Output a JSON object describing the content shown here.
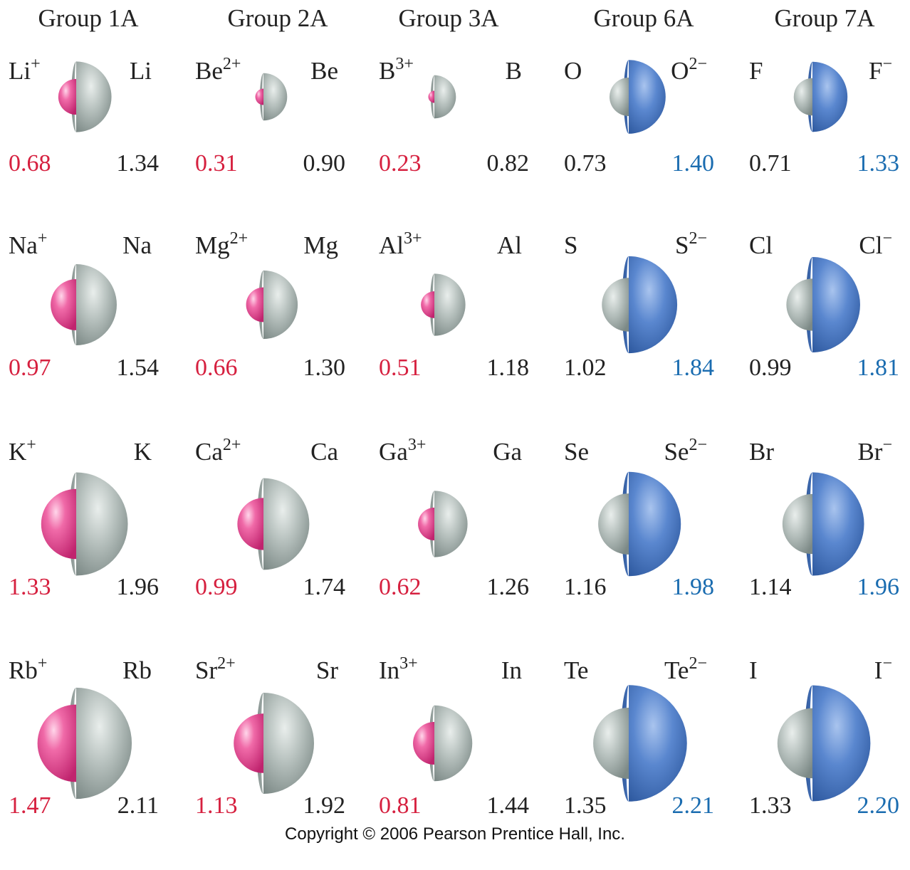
{
  "colors": {
    "cation": "#e8559a",
    "gray": "#aab5b2",
    "anion": "#4e7fc9",
    "red_text": "#d6203f",
    "blue_text": "#1a6cb0",
    "black_text": "#222222"
  },
  "groups": [
    {
      "name": "Group 1A",
      "type": "cation",
      "rows": [
        {
          "left_symbol": "Li",
          "left_charge": "+",
          "right_symbol": "Li",
          "right_charge": "",
          "left_value": "0.68",
          "right_value": "1.34"
        },
        {
          "left_symbol": "Na",
          "left_charge": "+",
          "right_symbol": "Na",
          "right_charge": "",
          "left_value": "0.97",
          "right_value": "1.54"
        },
        {
          "left_symbol": "K",
          "left_charge": "+",
          "right_symbol": "K",
          "right_charge": "",
          "left_value": "1.33",
          "right_value": "1.96"
        },
        {
          "left_symbol": "Rb",
          "left_charge": "+",
          "right_symbol": "Rb",
          "right_charge": "",
          "left_value": "1.47",
          "right_value": "2.11"
        }
      ]
    },
    {
      "name": "Group 2A",
      "type": "cation",
      "rows": [
        {
          "left_symbol": "Be",
          "left_charge": "2+",
          "right_symbol": "Be",
          "right_charge": "",
          "left_value": "0.31",
          "right_value": "0.90"
        },
        {
          "left_symbol": "Mg",
          "left_charge": "2+",
          "right_symbol": "Mg",
          "right_charge": "",
          "left_value": "0.66",
          "right_value": "1.30"
        },
        {
          "left_symbol": "Ca",
          "left_charge": "2+",
          "right_symbol": "Ca",
          "right_charge": "",
          "left_value": "0.99",
          "right_value": "1.74"
        },
        {
          "left_symbol": "Sr",
          "left_charge": "2+",
          "right_symbol": "Sr",
          "right_charge": "",
          "left_value": "1.13",
          "right_value": "1.92"
        }
      ]
    },
    {
      "name": "Group 3A",
      "type": "cation",
      "rows": [
        {
          "left_symbol": "B",
          "left_charge": "3+",
          "right_symbol": "B",
          "right_charge": "",
          "left_value": "0.23",
          "right_value": "0.82"
        },
        {
          "left_symbol": "Al",
          "left_charge": "3+",
          "right_symbol": "Al",
          "right_charge": "",
          "left_value": "0.51",
          "right_value": "1.18"
        },
        {
          "left_symbol": "Ga",
          "left_charge": "3+",
          "right_symbol": "Ga",
          "right_charge": "",
          "left_value": "0.62",
          "right_value": "1.26"
        },
        {
          "left_symbol": "In",
          "left_charge": "3+",
          "right_symbol": "In",
          "right_charge": "",
          "left_value": "0.81",
          "right_value": "1.44"
        }
      ]
    },
    {
      "name": "Group 6A",
      "type": "anion",
      "rows": [
        {
          "left_symbol": "O",
          "left_charge": "",
          "right_symbol": "O",
          "right_charge": "2−",
          "left_value": "0.73",
          "right_value": "1.40"
        },
        {
          "left_symbol": "S",
          "left_charge": "",
          "right_symbol": "S",
          "right_charge": "2−",
          "left_value": "1.02",
          "right_value": "1.84"
        },
        {
          "left_symbol": "Se",
          "left_charge": "",
          "right_symbol": "Se",
          "right_charge": "2−",
          "left_value": "1.16",
          "right_value": "1.98"
        },
        {
          "left_symbol": "Te",
          "left_charge": "",
          "right_symbol": "Te",
          "right_charge": "2−",
          "left_value": "1.35",
          "right_value": "2.21"
        }
      ]
    },
    {
      "name": "Group 7A",
      "type": "anion",
      "rows": [
        {
          "left_symbol": "F",
          "left_charge": "",
          "right_symbol": "F",
          "right_charge": "−",
          "left_value": "0.71",
          "right_value": "1.33"
        },
        {
          "left_symbol": "Cl",
          "left_charge": "",
          "right_symbol": "Cl",
          "right_charge": "−",
          "left_value": "0.99",
          "right_value": "1.81"
        },
        {
          "left_symbol": "Br",
          "left_charge": "",
          "right_symbol": "Br",
          "right_charge": "−",
          "left_value": "1.14",
          "right_value": "1.96"
        },
        {
          "left_symbol": "I",
          "left_charge": "",
          "right_symbol": "I",
          "right_charge": "−",
          "left_value": "1.33",
          "right_value": "2.20"
        }
      ]
    }
  ],
  "copyright": "Copyright © 2006 Pearson Prentice Hall, Inc."
}
